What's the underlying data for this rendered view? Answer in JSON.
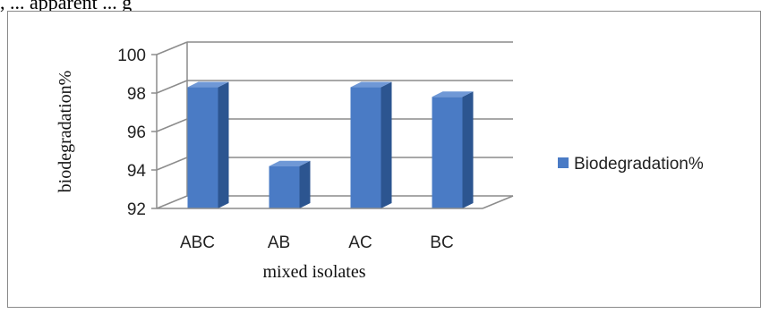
{
  "header_fragment": ", ... apparent ... g",
  "chart_data": {
    "type": "bar",
    "style": "3d-column",
    "categories": [
      "ABC",
      "AB",
      "AC",
      "BC"
    ],
    "series": [
      {
        "name": "Biodegradation%",
        "values": [
          98.3,
          94.2,
          98.3,
          97.8
        ]
      }
    ],
    "ylim": [
      92,
      100
    ],
    "yticks": [
      92,
      94,
      96,
      98,
      100
    ],
    "xlabel": "mixed isolates",
    "ylabel": "biodegradation%",
    "grid": true,
    "legend_position": "right",
    "colors": {
      "bar_front": "#4a7bc5",
      "bar_side": "#2c5590",
      "bar_top": "#6f98d6",
      "grid": "#8c8c8c",
      "legend_marker": "#4a7bc5"
    }
  }
}
